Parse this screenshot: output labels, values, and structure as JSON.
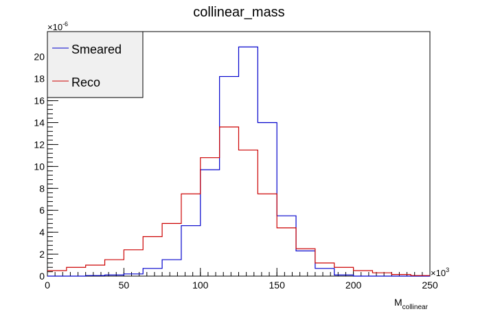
{
  "chart_data": {
    "type": "histogram",
    "title": "collinear_mass",
    "xlabel": "M",
    "xlabel_subscript": "collinear",
    "x_multiplier_label": "×10",
    "x_multiplier_exponent": "3",
    "y_multiplier_label": "×10",
    "y_multiplier_exponent": "-6",
    "xlim": [
      0,
      250
    ],
    "ylim": [
      0,
      22.3
    ],
    "x_ticks": [
      0,
      50,
      100,
      150,
      200,
      250
    ],
    "y_ticks": [
      0,
      2,
      4,
      6,
      8,
      10,
      12,
      14,
      16,
      18,
      20
    ],
    "bin_edges": [
      0,
      12.5,
      25,
      37.5,
      50,
      62.5,
      75,
      87.5,
      100,
      112.5,
      125,
      137.5,
      150,
      162.5,
      175,
      187.5,
      200,
      212.5,
      225,
      237.5,
      250
    ],
    "legend_position": "top-left",
    "series": [
      {
        "name": "Smeared",
        "color": "#0000cc",
        "values": [
          0.0,
          0.0,
          0.05,
          0.1,
          0.2,
          0.7,
          1.5,
          4.6,
          9.7,
          18.2,
          20.9,
          14.0,
          5.5,
          2.3,
          0.7,
          0.1,
          0.0,
          0.0,
          0.0,
          0.0
        ]
      },
      {
        "name": "Reco",
        "color": "#cc0000",
        "values": [
          0.5,
          0.8,
          1.0,
          1.5,
          2.4,
          3.6,
          4.8,
          7.5,
          10.8,
          13.6,
          11.5,
          7.5,
          4.4,
          2.5,
          1.2,
          0.8,
          0.5,
          0.3,
          0.15,
          0.05
        ]
      }
    ]
  }
}
